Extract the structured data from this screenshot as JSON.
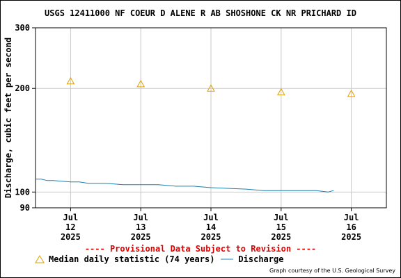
{
  "title": "USGS 12411000 NF COEUR D ALENE R AB SHOSHONE CK NR PRICHARD ID",
  "provisional_notice": "---- Provisional Data Subject to Revision ----",
  "credit": "Graph courtesy of the U.S. Geological Survey",
  "colors": {
    "median": "#e0a000",
    "discharge": "#1a7fb0",
    "grid": "#c8c8c8",
    "provisional": "#e00000"
  },
  "chart_data": {
    "type": "line",
    "title": "USGS 12411000 NF COEUR D ALENE R AB SHOSHONE CK NR PRICHARD ID",
    "ylabel": "Discharge, cubic feet per second",
    "xlabel": "",
    "y_scale": "log",
    "ylim": [
      90,
      300
    ],
    "y_ticks": [
      {
        "value": 300,
        "label": "300"
      },
      {
        "value": 200,
        "label": "200"
      },
      {
        "value": 100,
        "label": "100"
      },
      {
        "value": 90,
        "label": "90"
      }
    ],
    "xlim": [
      "2025-07-11T12:00",
      "2025-07-16T12:00"
    ],
    "x_ticks": [
      {
        "value": "2025-07-12",
        "label": [
          "Jul",
          "12",
          "2025"
        ]
      },
      {
        "value": "2025-07-13",
        "label": [
          "Jul",
          "13",
          "2025"
        ]
      },
      {
        "value": "2025-07-14",
        "label": [
          "Jul",
          "14",
          "2025"
        ]
      },
      {
        "value": "2025-07-15",
        "label": [
          "Jul",
          "15",
          "2025"
        ]
      },
      {
        "value": "2025-07-16",
        "label": [
          "Jul",
          "16",
          "2025"
        ]
      }
    ],
    "grid": true,
    "legend_position": "bottom",
    "series": [
      {
        "name": "Median daily statistic (74 years)",
        "kind": "triangle-markers",
        "color": "#e0a000",
        "points": [
          {
            "x": "2025-07-12T00:00",
            "y": 210
          },
          {
            "x": "2025-07-13T00:00",
            "y": 206
          },
          {
            "x": "2025-07-14T00:00",
            "y": 200
          },
          {
            "x": "2025-07-15T00:00",
            "y": 195
          },
          {
            "x": "2025-07-16T00:00",
            "y": 193
          }
        ]
      },
      {
        "name": "Discharge",
        "kind": "line",
        "color": "#1a7fb0",
        "points": [
          {
            "x": "2025-07-11T12:00",
            "y": 109
          },
          {
            "x": "2025-07-11T14:00",
            "y": 109
          },
          {
            "x": "2025-07-11T16:00",
            "y": 108
          },
          {
            "x": "2025-07-11T18:00",
            "y": 108
          },
          {
            "x": "2025-07-12T00:00",
            "y": 107
          },
          {
            "x": "2025-07-12T03:00",
            "y": 107
          },
          {
            "x": "2025-07-12T06:00",
            "y": 106
          },
          {
            "x": "2025-07-12T12:00",
            "y": 106
          },
          {
            "x": "2025-07-12T18:00",
            "y": 105
          },
          {
            "x": "2025-07-13T00:00",
            "y": 105
          },
          {
            "x": "2025-07-13T06:00",
            "y": 105
          },
          {
            "x": "2025-07-13T12:00",
            "y": 104
          },
          {
            "x": "2025-07-13T18:00",
            "y": 104
          },
          {
            "x": "2025-07-14T00:00",
            "y": 103
          },
          {
            "x": "2025-07-14T12:00",
            "y": 102
          },
          {
            "x": "2025-07-14T18:00",
            "y": 101
          },
          {
            "x": "2025-07-15T00:00",
            "y": 101
          },
          {
            "x": "2025-07-15T06:00",
            "y": 101
          },
          {
            "x": "2025-07-15T12:00",
            "y": 101
          },
          {
            "x": "2025-07-15T16:00",
            "y": 100
          },
          {
            "x": "2025-07-15T18:00",
            "y": 101
          }
        ]
      }
    ]
  }
}
